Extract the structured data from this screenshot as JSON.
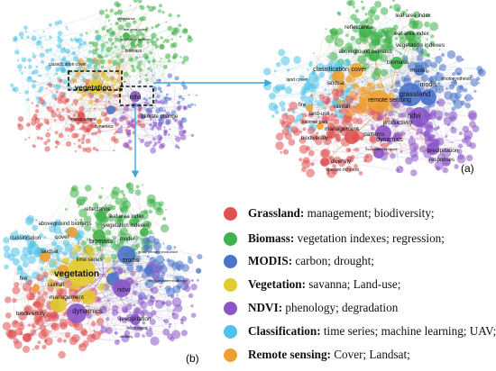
{
  "colors": {
    "grassland": "#e05252",
    "biomass": "#3fb24a",
    "modis": "#4a73c9",
    "vegetation": "#e2cb2e",
    "ndvi": "#8a55c8",
    "classification": "#4fc3e8",
    "remote_sensing": "#f0a030",
    "arrow": "#3ba7e0",
    "box": "#111111"
  },
  "panels": {
    "a_label": "(a)",
    "b_label": "(b)"
  },
  "overview": {
    "terms": [
      "vegetation",
      "ndvi",
      "climate change",
      "management",
      "dynamics",
      "classification cover",
      "biomass",
      "leaf area index",
      "vegetation indexes",
      "reflectance"
    ]
  },
  "panel_a": {
    "terms": [
      "leaf area index",
      "reflectance",
      "leaf area index",
      "vegetation indexes",
      "aboveground biomass",
      "biomass",
      "classification",
      "cover",
      "model",
      "land cover",
      "landsat",
      "modis",
      "photosynthesis",
      "remote sensing",
      "grassland",
      "fire",
      "rainfall",
      "ndvi",
      "land-use",
      "national park",
      "management",
      "productivity",
      "patterns",
      "dynamics",
      "biodiversity",
      "precipitation",
      "responses",
      "diversity",
      "species richness",
      "ecosystem services"
    ]
  },
  "panel_b": {
    "terms": [
      "reflectance",
      "leaf area index",
      "aboveground biomass",
      "vegetation indexes",
      "classification",
      "cover",
      "biomass",
      "landsat",
      "model",
      "time series",
      "vegetation",
      "modis",
      "gross primary production",
      "fire",
      "rainfall",
      "net ecosystem exchange",
      "management",
      "ndvi",
      "dynamics",
      "biodiversity",
      "precipitation",
      "responses",
      "diversity"
    ]
  },
  "legend": [
    {
      "key": "Grassland:",
      "text": " management; biodiversity;",
      "color_key": "grassland"
    },
    {
      "key": "Biomass:",
      "text": " vegetation indexes; regression;",
      "color_key": "biomass"
    },
    {
      "key": "MODIS:",
      "text": " carbon; drought;",
      "color_key": "modis"
    },
    {
      "key": "Vegetation:",
      "text": " savanna; Land-use;",
      "color_key": "vegetation"
    },
    {
      "key": "NDVI:",
      "text": " phenology; degradation",
      "color_key": "ndvi"
    },
    {
      "key": "Classification:",
      "text": " time series; machine learning; UAV;",
      "color_key": "classification"
    },
    {
      "key": "Remote sensing:",
      "text": " Cover; Landsat;",
      "color_key": "remote_sensing"
    }
  ]
}
